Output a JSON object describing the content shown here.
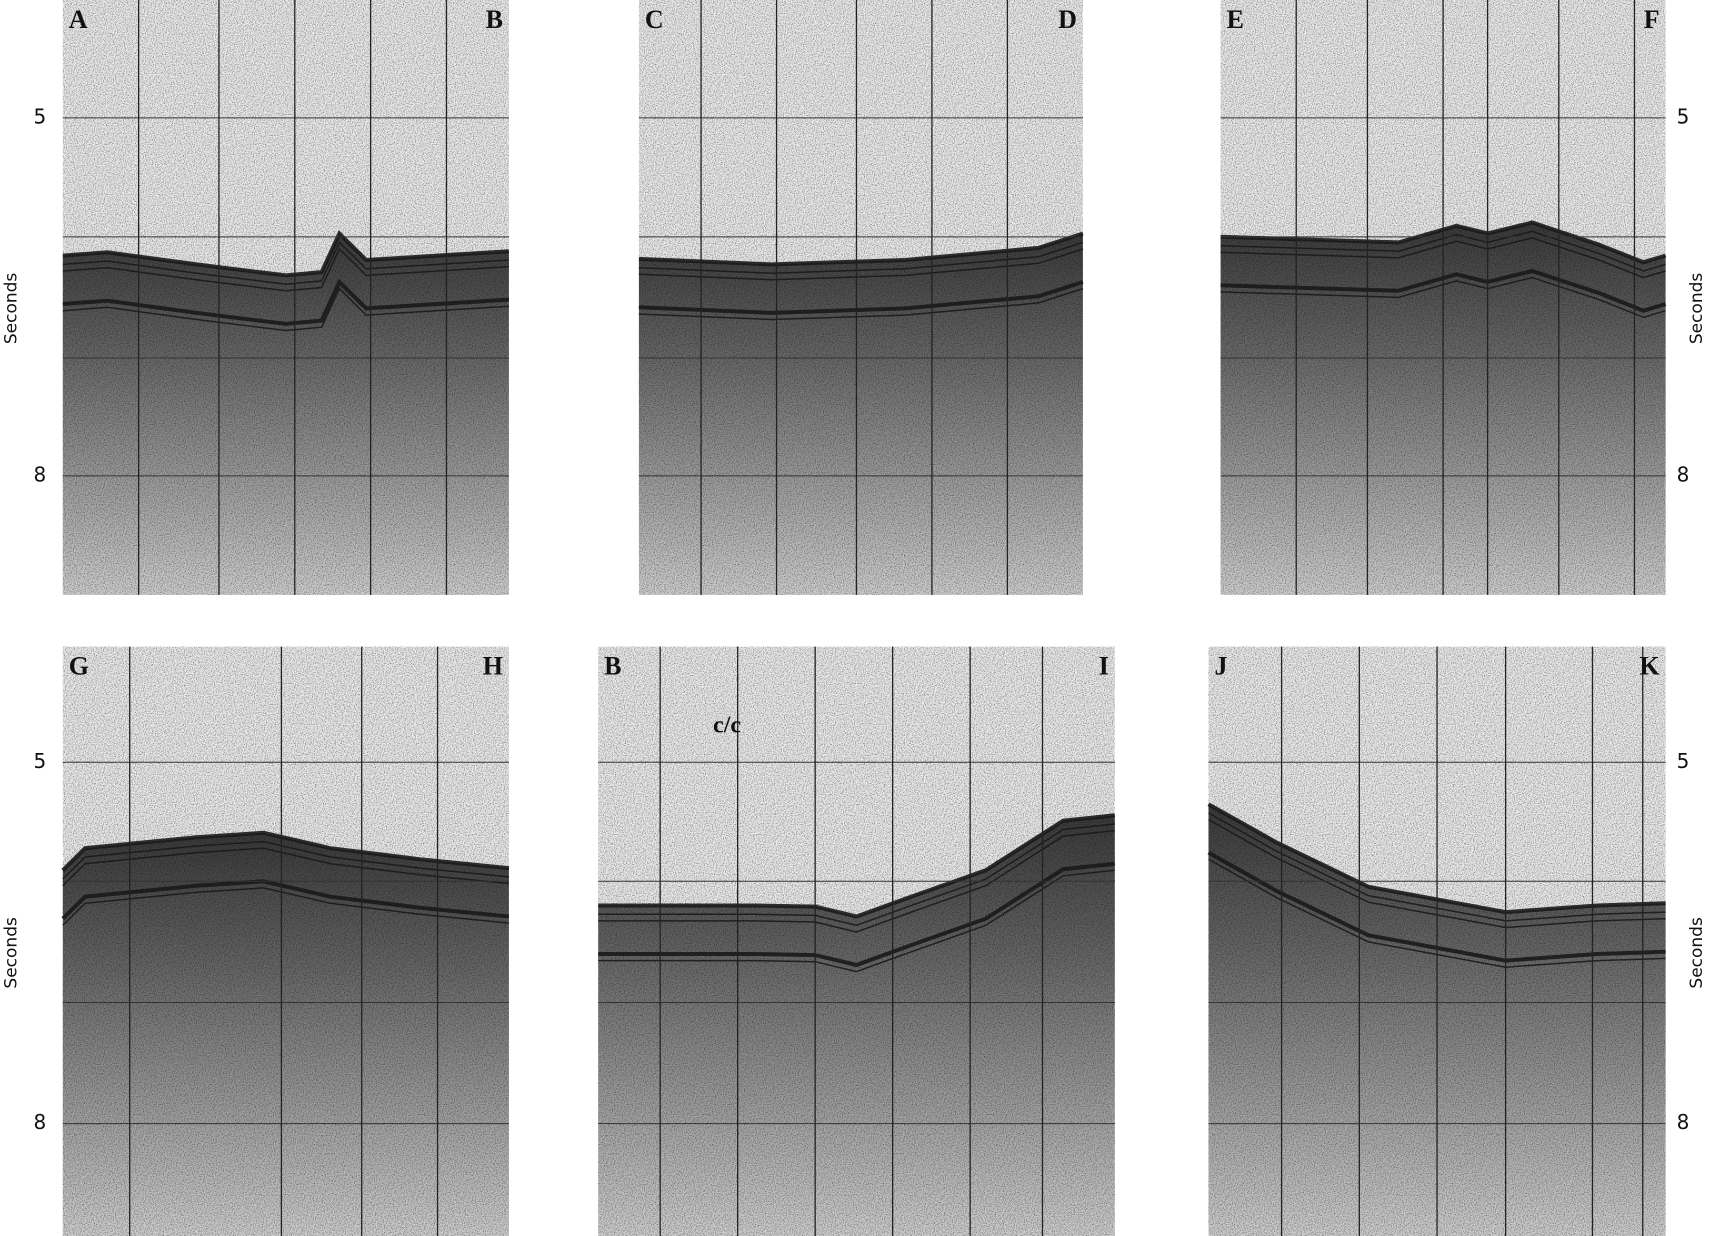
{
  "figure": {
    "panels": [
      {
        "left": "A",
        "right": "B"
      },
      {
        "left": "C",
        "right": "D"
      },
      {
        "left": "E",
        "right": "F"
      },
      {
        "left": "G",
        "right": "H"
      },
      {
        "left": "B",
        "right": "I"
      },
      {
        "left": "J",
        "right": "K"
      }
    ],
    "axis": {
      "label": "Seconds",
      "ticks": [
        "5",
        "8"
      ]
    },
    "annotation": "c/c"
  }
}
